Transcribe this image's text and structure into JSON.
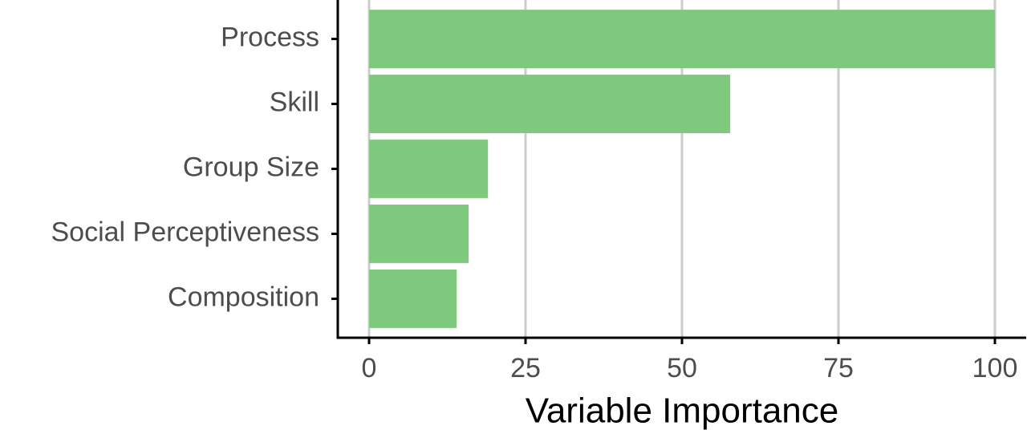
{
  "chart_data": {
    "type": "barh",
    "xlabel": "Variable Importance",
    "categories": [
      "Process",
      "Skill",
      "Group Size",
      "Social Perceptiveness",
      "Composition"
    ],
    "values": [
      100,
      57.7,
      19.0,
      15.9,
      14.0
    ],
    "color": "#7fc97f",
    "xlim": [
      -5,
      105
    ],
    "xticks": [
      0,
      25,
      50,
      75,
      100
    ],
    "grid": true
  }
}
